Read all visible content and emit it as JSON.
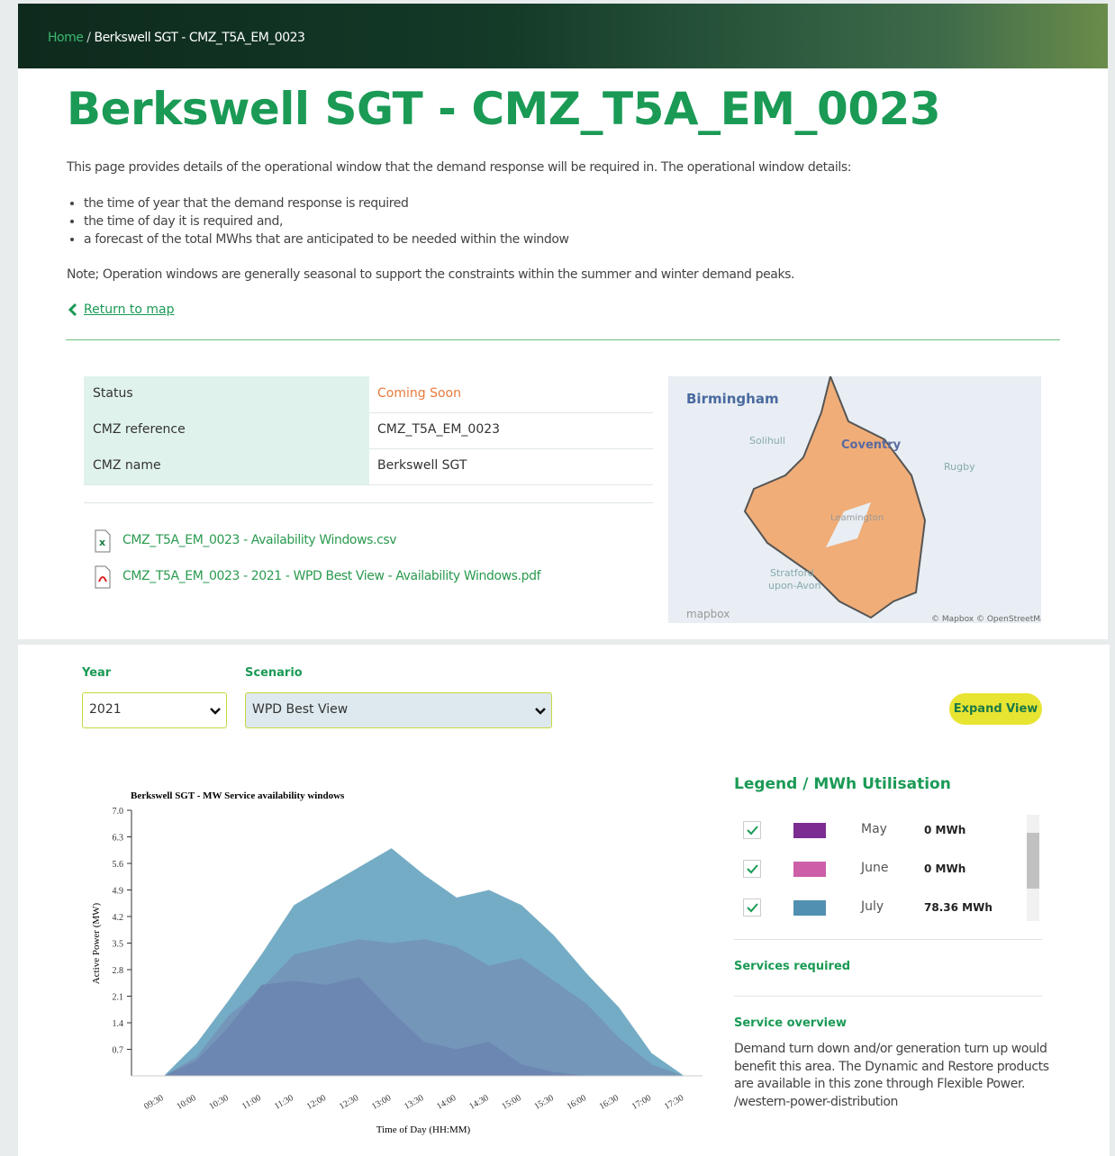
{
  "breadcrumb": [
    "Home",
    "Berkswell SGT - CMZ_T5A_EM_0023"
  ],
  "title": "Berkswell SGT - CMZ_T5A_EM_0023",
  "intro": "This page provides details of the operational window that the demand response will be required in. The operational window details:",
  "bullets": [
    "the time of year that the demand response is required",
    "the time of day it is required and,",
    "a forecast of the total MWhs that are anticipated to be needed within the window"
  ],
  "note": "Note; Operation windows are generally seasonal to support the constraints within the summer and winter demand peaks.",
  "return_link": "Return to map",
  "table": {
    "rows": [
      [
        "Status",
        "Coming Soon"
      ],
      [
        "CMZ reference",
        "CMZ_T5A_EM_0023"
      ],
      [
        "CMZ name",
        "Berkswell SGT"
      ]
    ]
  },
  "files": [
    "CMZ_T5A_EM_0023 - Availability Windows.csv",
    "CMZ_T5A_EM_0023 - 2021 - WPD Best View - Availability Windows.pdf"
  ],
  "map": {
    "labels": [
      "Birmingham",
      "Solihull",
      "Coventry",
      "Rugby",
      "Leamington",
      "Stratford",
      "upon-Avon"
    ],
    "logo": "mapbox",
    "attribution": "© Mapbox © OpenStreetMap"
  },
  "filters": {
    "year_label": "Year",
    "year": "2021",
    "scenario_label": "Scenario",
    "scenario": "WPD Best View",
    "button": "Expand View"
  },
  "chart_data": {
    "type": "area",
    "title": "Berkswell SGT - MW Service availability windows",
    "y_label": "Active Power (MW)",
    "x_label": "Time of Day (HH:MM)",
    "categories": [
      "09:30",
      "10:00",
      "10:30",
      "11:00",
      "11:30",
      "12:00",
      "12:30",
      "13:00",
      "13:30",
      "14:00",
      "14:30",
      "15:00",
      "15:30",
      "16:00",
      "16:30",
      "17:00",
      "17:30"
    ],
    "series": [
      {
        "color": "#6ea8c2",
        "values": [
          0,
          0.85,
          2.0,
          3.2,
          4.5,
          5.0,
          5.5,
          6.0,
          5.3,
          4.7,
          4.9,
          4.5,
          3.7,
          2.7,
          1.8,
          0.6,
          0
        ]
      },
      {
        "color": "#7395b8",
        "values": [
          0,
          0.5,
          1.6,
          2.3,
          3.2,
          3.4,
          3.6,
          3.5,
          3.6,
          3.4,
          2.9,
          3.1,
          2.5,
          1.9,
          1.0,
          0.3,
          0
        ]
      },
      {
        "color": "#6c86b0",
        "values": [
          0,
          0.4,
          1.3,
          2.4,
          2.5,
          2.4,
          2.6,
          1.7,
          0.9,
          0.7,
          0.9,
          0.3,
          0.1,
          0,
          0,
          0,
          0
        ]
      }
    ],
    "ylim": [
      0,
      7
    ],
    "yticks": [
      0.7,
      1.4,
      2.1,
      2.8,
      3.5,
      4.2,
      4.9,
      5.6,
      6.3,
      {
        "value": 7,
        "label": "7.0"
      }
    ]
  },
  "legend": {
    "title": "Legend / MWh Utilisation",
    "items": [
      {
        "name": "May",
        "color": "#7b2d91",
        "value": "0 MWh"
      },
      {
        "name": "June",
        "color": "#cc5fa8",
        "value": "0 MWh"
      },
      {
        "name": "July",
        "color": "#5190b0",
        "value": "78.36 MWh"
      }
    ]
  },
  "services_required": "Services required",
  "service_overview": {
    "title": "Service overview",
    "text": "Demand turn down and/or generation turn up would benefit this area. The Dynamic and Restore products are available in this zone through Flexible Power. /western-power-distribution"
  }
}
